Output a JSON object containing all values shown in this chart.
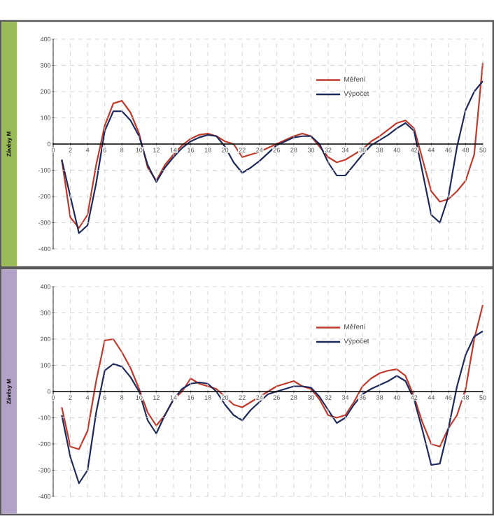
{
  "chart_data": [
    {
      "type": "line",
      "ylabel": "Závěsy M",
      "x": [
        1,
        2,
        3,
        4,
        5,
        6,
        7,
        8,
        9,
        10,
        11,
        12,
        13,
        14,
        15,
        16,
        17,
        18,
        19,
        20,
        21,
        22,
        23,
        24,
        25,
        26,
        27,
        28,
        29,
        30,
        31,
        32,
        33,
        34,
        35,
        36,
        37,
        38,
        39,
        40,
        41,
        42,
        43,
        44,
        45,
        46,
        47,
        48,
        49,
        50
      ],
      "xlim": [
        0,
        50
      ],
      "xticks": [
        0,
        2,
        4,
        6,
        8,
        10,
        12,
        14,
        16,
        18,
        20,
        22,
        24,
        26,
        28,
        30,
        32,
        34,
        36,
        38,
        40,
        42,
        44,
        46,
        48,
        50
      ],
      "ylim": [
        -400,
        400
      ],
      "yticks": [
        -400,
        -300,
        -200,
        -100,
        0,
        100,
        200,
        300,
        400
      ],
      "grid": true,
      "legend": "top right",
      "marker": "none",
      "series": [
        {
          "name": "Měření",
          "color": "#c0392b",
          "values": [
            -60,
            -280,
            -320,
            -270,
            -80,
            70,
            155,
            165,
            120,
            40,
            -90,
            -140,
            -80,
            -40,
            -5,
            20,
            35,
            40,
            30,
            10,
            0,
            -50,
            -40,
            -30,
            -15,
            0,
            15,
            30,
            40,
            30,
            -10,
            -50,
            -70,
            -60,
            -40,
            -20,
            10,
            30,
            55,
            80,
            90,
            60,
            -60,
            -180,
            -220,
            -210,
            -180,
            -140,
            -40,
            310
          ]
        },
        {
          "name": "Výpočet",
          "color": "#1f2a5c",
          "values": [
            -60,
            -200,
            -340,
            -310,
            -150,
            50,
            125,
            125,
            90,
            30,
            -80,
            -145,
            -90,
            -50,
            -15,
            10,
            25,
            35,
            30,
            -10,
            -70,
            -110,
            -90,
            -65,
            -35,
            -5,
            10,
            25,
            30,
            30,
            0,
            -70,
            -120,
            -120,
            -80,
            -40,
            -5,
            15,
            35,
            60,
            80,
            50,
            -110,
            -270,
            -300,
            -200,
            -10,
            130,
            200,
            240
          ]
        }
      ]
    },
    {
      "type": "line",
      "ylabel": "Závěsy M",
      "x": [
        1,
        2,
        3,
        4,
        5,
        6,
        7,
        8,
        9,
        10,
        11,
        12,
        13,
        14,
        15,
        16,
        17,
        18,
        19,
        20,
        21,
        22,
        23,
        24,
        25,
        26,
        27,
        28,
        29,
        30,
        31,
        32,
        33,
        34,
        35,
        36,
        37,
        38,
        39,
        40,
        41,
        42,
        43,
        44,
        45,
        46,
        47,
        48,
        49,
        50
      ],
      "xlim": [
        0,
        50
      ],
      "xticks": [
        0,
        2,
        4,
        6,
        8,
        10,
        12,
        14,
        16,
        18,
        20,
        22,
        24,
        26,
        28,
        30,
        32,
        34,
        36,
        38,
        40,
        42,
        44,
        46,
        48,
        50
      ],
      "ylim": [
        -400,
        400
      ],
      "yticks": [
        -400,
        -300,
        -200,
        -100,
        0,
        100,
        200,
        300,
        400
      ],
      "grid": true,
      "legend": "top right",
      "marker": "none",
      "series": [
        {
          "name": "Měření",
          "color": "#c0392b",
          "values": [
            -60,
            -210,
            -220,
            -150,
            40,
            195,
            200,
            150,
            90,
            10,
            -80,
            -130,
            -90,
            -30,
            0,
            50,
            30,
            20,
            10,
            -20,
            -50,
            -60,
            -40,
            -20,
            0,
            20,
            30,
            40,
            20,
            10,
            -30,
            -90,
            -100,
            -90,
            -40,
            20,
            50,
            70,
            80,
            85,
            60,
            -20,
            -120,
            -200,
            -210,
            -140,
            -90,
            10,
            200,
            330
          ]
        },
        {
          "name": "Výpočet",
          "color": "#1f2a5c",
          "values": [
            -90,
            -250,
            -350,
            -300,
            -80,
            80,
            105,
            95,
            55,
            0,
            -110,
            -160,
            -90,
            -30,
            10,
            30,
            35,
            30,
            0,
            -50,
            -90,
            -110,
            -70,
            -40,
            -10,
            0,
            10,
            20,
            20,
            15,
            -20,
            -70,
            -120,
            -100,
            -50,
            -10,
            10,
            25,
            40,
            60,
            40,
            -30,
            -150,
            -280,
            -275,
            -140,
            20,
            140,
            210,
            230
          ]
        }
      ]
    }
  ]
}
